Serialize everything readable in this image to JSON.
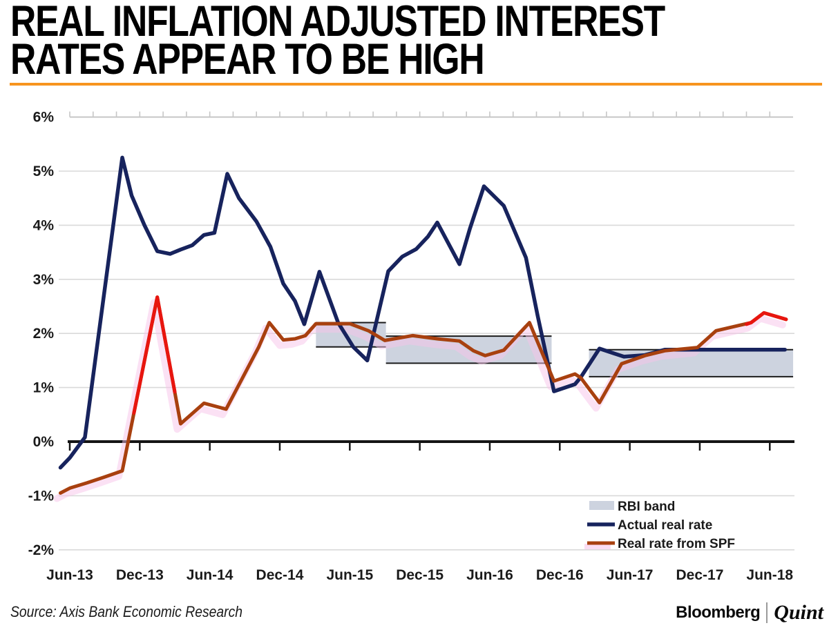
{
  "title": {
    "line1": "REAL INFLATION ADJUSTED INTEREST",
    "line2": "RATES APPEAR TO BE HIGH"
  },
  "accent_color": "#f7941e",
  "footer": {
    "source": "Source: Axis Bank Economic Research",
    "brand_bloomberg": "Bloomberg",
    "brand_quint": "Quint"
  },
  "colors": {
    "background": "#ffffff",
    "gridline": "#d9d9d9",
    "top_axis": "#c6c6c6",
    "zero_axis": "#141414",
    "tick_label": "#1a1a1a",
    "band_fill": "#cdd3df",
    "band_border": "#1a1a1a",
    "navy_line": "#17235d",
    "red_line": "#a8400f",
    "red_highlight": "#e8150f",
    "red_glow": "#f7c3ea"
  },
  "chart_data": {
    "type": "line",
    "title": "REAL INFLATION ADJUSTED INTEREST RATES APPEAR TO BE HIGH",
    "x_axis": {
      "unit": "months since Jun-13",
      "tick_labels": [
        "Jun-13",
        "Dec-13",
        "Jun-14",
        "Dec-14",
        "Jun-15",
        "Dec-15",
        "Jun-16",
        "Dec-16",
        "Jun-17",
        "Dec-17",
        "Jun-18"
      ],
      "tick_month_index": [
        0,
        6,
        12,
        18,
        24,
        30,
        36,
        42,
        48,
        54,
        60
      ],
      "minor_top_tick_every_months": 2,
      "grid": "horizontal-only"
    },
    "y_axis": {
      "unit": "%",
      "tick_labels": [
        "6%",
        "5%",
        "4%",
        "3%",
        "2%",
        "1%",
        "0%",
        "-1%",
        "-2%"
      ],
      "tick_values": [
        6,
        5,
        4,
        3,
        2,
        1,
        0,
        -1,
        -2
      ],
      "range": [
        -2,
        6
      ]
    },
    "legend": {
      "position": "inside-bottom-right",
      "items": [
        {
          "label": "RBI band",
          "swatch": "band"
        },
        {
          "label": "Actual real rate",
          "swatch": "line",
          "series": 0
        },
        {
          "label": "Real rate from SPF",
          "swatch": "line",
          "series": 1
        }
      ]
    },
    "bands": {
      "name": "RBI band",
      "ranges": [
        {
          "from_month": 21.1,
          "to_month": 27.1,
          "top": 2.2,
          "bottom": 1.75
        },
        {
          "from_month": 27.1,
          "to_month": 41.3,
          "top": 1.95,
          "bottom": 1.45
        },
        {
          "from_month": 44.5,
          "to_month": 62.0,
          "top": 1.7,
          "bottom": 1.2
        }
      ]
    },
    "series": [
      {
        "name": "Actual real rate",
        "points": [
          [
            -0.8,
            -0.48
          ],
          [
            0,
            -0.3
          ],
          [
            1.3,
            0.08
          ],
          [
            4.5,
            5.25
          ],
          [
            5.3,
            4.55
          ],
          [
            6.4,
            4.0
          ],
          [
            7.5,
            3.52
          ],
          [
            8.6,
            3.47
          ],
          [
            9.5,
            3.55
          ],
          [
            10.5,
            3.63
          ],
          [
            11.5,
            3.82
          ],
          [
            12.4,
            3.86
          ],
          [
            13.5,
            4.95
          ],
          [
            14.5,
            4.5
          ],
          [
            16,
            4.07
          ],
          [
            17.2,
            3.6
          ],
          [
            18.3,
            2.92
          ],
          [
            19.3,
            2.6
          ],
          [
            20.1,
            2.17
          ],
          [
            21.4,
            3.14
          ],
          [
            23,
            2.2
          ],
          [
            24.3,
            1.75
          ],
          [
            25.5,
            1.5
          ],
          [
            27.3,
            3.15
          ],
          [
            28.5,
            3.42
          ],
          [
            29.7,
            3.56
          ],
          [
            30.7,
            3.79
          ],
          [
            31.5,
            4.05
          ],
          [
            33.4,
            3.28
          ],
          [
            34.3,
            3.94
          ],
          [
            35.5,
            4.72
          ],
          [
            37.2,
            4.36
          ],
          [
            39.1,
            3.4
          ],
          [
            40.1,
            2.33
          ],
          [
            41.5,
            0.93
          ],
          [
            43.3,
            1.06
          ],
          [
            43.8,
            1.19
          ],
          [
            45.4,
            1.72
          ],
          [
            47.5,
            1.57
          ],
          [
            49.3,
            1.6
          ],
          [
            51,
            1.7
          ],
          [
            61.3,
            1.7
          ]
        ]
      },
      {
        "name": "Real rate from SPF",
        "points": [
          [
            -0.8,
            -0.95
          ],
          [
            0,
            -0.86
          ],
          [
            1.5,
            -0.76
          ],
          [
            2.9,
            -0.66
          ],
          [
            4.5,
            -0.54
          ],
          [
            7.5,
            2.67
          ],
          [
            9.5,
            0.33
          ],
          [
            11.5,
            0.71
          ],
          [
            13.4,
            0.6
          ],
          [
            16.2,
            1.75
          ],
          [
            17.1,
            2.2
          ],
          [
            18.3,
            1.88
          ],
          [
            19.3,
            1.9
          ],
          [
            20.2,
            1.96
          ],
          [
            21.1,
            2.18
          ],
          [
            24,
            2.18
          ],
          [
            25.6,
            2.05
          ],
          [
            27,
            1.87
          ],
          [
            29.4,
            1.96
          ],
          [
            31.5,
            1.9
          ],
          [
            33.4,
            1.86
          ],
          [
            34.6,
            1.68
          ],
          [
            35.6,
            1.59
          ],
          [
            37.2,
            1.69
          ],
          [
            39.4,
            2.2
          ],
          [
            41.5,
            1.12
          ],
          [
            43.3,
            1.25
          ],
          [
            43.8,
            1.18
          ],
          [
            45.4,
            0.72
          ],
          [
            47.3,
            1.44
          ],
          [
            49.3,
            1.59
          ],
          [
            51,
            1.68
          ],
          [
            53.8,
            1.74
          ],
          [
            55.4,
            2.05
          ],
          [
            57.4,
            2.15
          ],
          [
            58.4,
            2.2
          ],
          [
            59.5,
            2.38
          ],
          [
            61.4,
            2.26
          ]
        ],
        "highlight_segments": [
          [
            [
              5.5,
              0.53
            ],
            [
              7.5,
              2.67
            ],
            [
              9,
              0.92
            ]
          ],
          [
            [
              58,
              2.17
            ],
            [
              58.4,
              2.2
            ],
            [
              59.5,
              2.38
            ],
            [
              61.4,
              2.26
            ]
          ]
        ]
      }
    ]
  }
}
